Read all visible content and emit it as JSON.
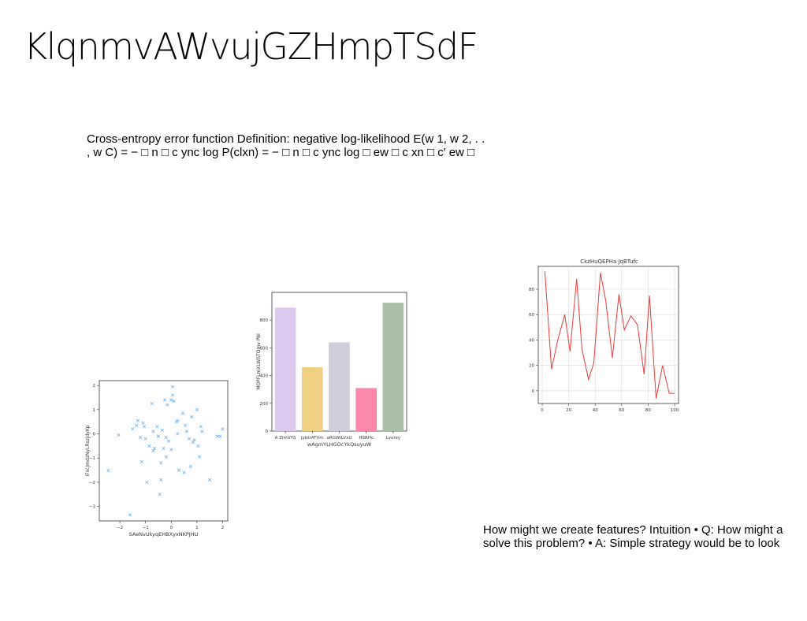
{
  "slide": {
    "title": "KlqnmvAWvujGZHmpTSdF",
    "text_top": {
      "line1": "Cross-entropy error function Definition: negative log-likelihood E(w 1, w 2, . .",
      "line2": ", w C) = − □ n □ c ync log P(clxn) = − □ n □ c ync log □ ew □ c xn □ c′ ew □"
    },
    "text_bottom": {
      "line1": "How might we create features? Intuition • Q: How might a",
      "line2": "solve this problem? • A: Simple strategy would be to look"
    }
  },
  "chart_data": [
    {
      "type": "scatter",
      "title": "",
      "xlabel": "SAeNvUkyqEHBXyxNKPJHU",
      "ylabel": "IFxcJmdzNyLRszjdyKp",
      "xlim": [
        -2.8,
        2.2
      ],
      "ylim": [
        -3.6,
        2.2
      ],
      "xticks": [
        -2,
        -1,
        0,
        1,
        2
      ],
      "yticks": [
        -3,
        -2,
        -1,
        0,
        1,
        2
      ],
      "marker": "x",
      "color": "#7fb6e6",
      "points": [
        [
          -2.45,
          -1.52
        ],
        [
          -2.05,
          -0.05
        ],
        [
          -1.6,
          -3.35
        ],
        [
          -1.5,
          0.2
        ],
        [
          -1.35,
          0.35
        ],
        [
          -1.3,
          0.55
        ],
        [
          -1.2,
          -0.15
        ],
        [
          -1.15,
          -1.15
        ],
        [
          -1.1,
          0.45
        ],
        [
          -1.05,
          0.3
        ],
        [
          -1.0,
          -0.2
        ],
        [
          -0.95,
          -2.0
        ],
        [
          -0.85,
          -0.5
        ],
        [
          -0.75,
          1.25
        ],
        [
          -0.7,
          -0.7
        ],
        [
          -0.7,
          0.1
        ],
        [
          -0.65,
          -0.6
        ],
        [
          -0.55,
          0.3
        ],
        [
          -0.5,
          -0.1
        ],
        [
          -0.45,
          -2.5
        ],
        [
          -0.4,
          -1.2
        ],
        [
          -0.4,
          -1.9
        ],
        [
          -0.35,
          0.15
        ],
        [
          -0.3,
          -0.6
        ],
        [
          -0.25,
          1.4
        ],
        [
          -0.2,
          -0.95
        ],
        [
          -0.2,
          -0.15
        ],
        [
          -0.15,
          1.2
        ],
        [
          -0.1,
          -0.3
        ],
        [
          0.0,
          -0.65
        ],
        [
          0.0,
          1.4
        ],
        [
          0.05,
          1.6
        ],
        [
          0.05,
          1.95
        ],
        [
          0.1,
          1.35
        ],
        [
          0.2,
          0.5
        ],
        [
          0.25,
          0.0
        ],
        [
          0.3,
          -1.5
        ],
        [
          0.45,
          0.85
        ],
        [
          0.5,
          -1.6
        ],
        [
          0.55,
          0.35
        ],
        [
          0.6,
          0.1
        ],
        [
          0.7,
          -0.2
        ],
        [
          0.75,
          -1.35
        ],
        [
          0.8,
          0.7
        ],
        [
          0.85,
          -0.35
        ],
        [
          0.9,
          -0.25
        ],
        [
          1.0,
          1.0
        ],
        [
          1.05,
          -0.5
        ],
        [
          1.1,
          -0.95
        ],
        [
          1.15,
          0.3
        ],
        [
          1.2,
          0.1
        ],
        [
          1.5,
          -1.9
        ],
        [
          1.8,
          -0.1
        ],
        [
          1.9,
          -0.1
        ],
        [
          2.0,
          0.2
        ],
        [
          -0.5,
          -0.1
        ],
        [
          0.25,
          0.55
        ]
      ]
    },
    {
      "type": "bar",
      "title": "",
      "xlabel": "wAgmYLHGOcYkQsuyuW",
      "ylabel": "MOPFLmXLWSTOmv Pbl",
      "ylim": [
        0,
        1000
      ],
      "yticks": [
        0,
        200,
        400,
        600,
        800
      ],
      "categories": [
        "A ZlmVYS",
        "JybtrATVm",
        "aRGWiLVxU",
        "HSRHc",
        "Lvurey"
      ],
      "values": [
        890,
        460,
        640,
        310,
        925
      ],
      "colors": [
        "#ddc9ee",
        "#f0d083",
        "#cfccdc",
        "#fb88aa",
        "#a9c0a5"
      ]
    },
    {
      "type": "line",
      "title": "CkzHuQEPHa JqBTufc",
      "xlabel": "",
      "ylabel": "",
      "xlim": [
        -3,
        103
      ],
      "ylim": [
        -10,
        98
      ],
      "xticks": [
        0,
        20,
        40,
        60,
        80,
        100
      ],
      "yticks": [
        0,
        20,
        40,
        60,
        80
      ],
      "color": "#e8393a",
      "x": [
        2,
        7,
        12,
        17,
        21,
        26,
        30,
        35,
        39,
        44,
        48,
        53,
        58,
        62,
        67,
        72,
        77,
        81,
        86,
        91,
        96,
        100
      ],
      "y": [
        94,
        17,
        41,
        60,
        31,
        88,
        33,
        9,
        22,
        93,
        71,
        26,
        76,
        48,
        59,
        52,
        13,
        75,
        -6,
        20,
        -2,
        -2
      ]
    }
  ]
}
